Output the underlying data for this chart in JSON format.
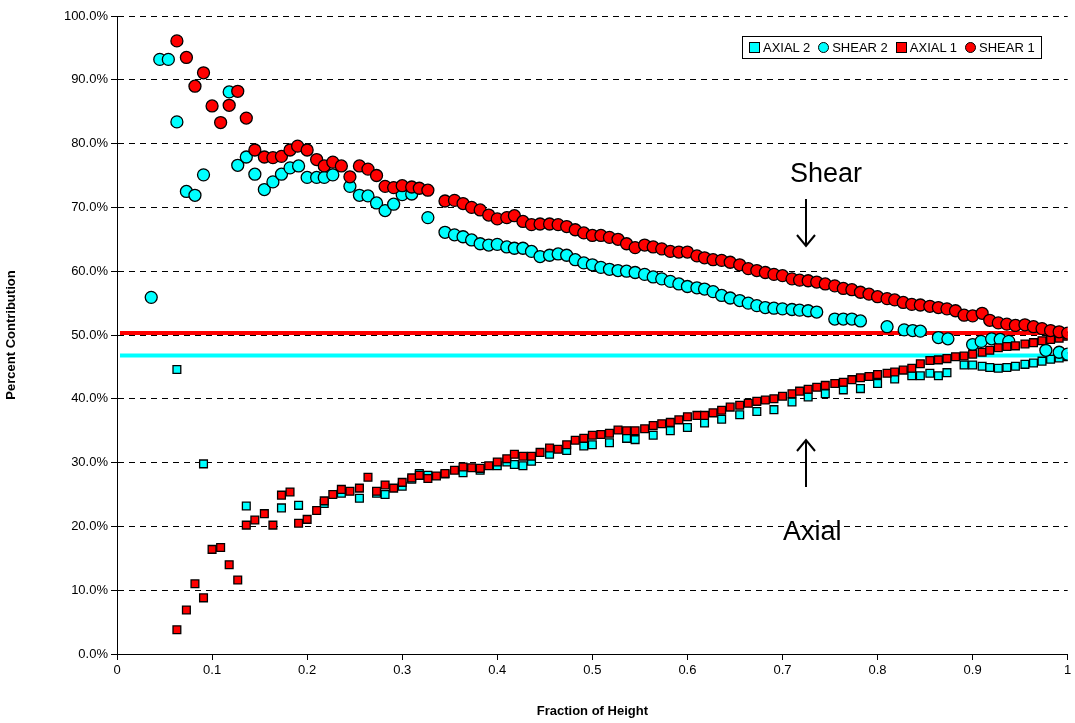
{
  "chart_data": {
    "type": "scatter",
    "xlabel": "Fraction of Height",
    "ylabel": "Percent Contribution",
    "xlim": [
      0,
      1
    ],
    "xticks": [
      0,
      0.1,
      0.2,
      0.3,
      0.4,
      0.5,
      0.6,
      0.7,
      0.8,
      0.9,
      1
    ],
    "ylim": [
      0,
      100
    ],
    "yticks": [
      {
        "value": 0,
        "label": "0.0%"
      },
      {
        "value": 10,
        "label": "10.0%"
      },
      {
        "value": 20,
        "label": "20.0%"
      },
      {
        "value": 30,
        "label": "30.0%"
      },
      {
        "value": 40,
        "label": "40.0%"
      },
      {
        "value": 50,
        "label": "50.0%"
      },
      {
        "value": 60,
        "label": "60.0%"
      },
      {
        "value": 70,
        "label": "70.0%"
      },
      {
        "value": 80,
        "label": "80.0%"
      },
      {
        "value": 90,
        "label": "90.0%"
      },
      {
        "value": 100,
        "label": "100.0%"
      }
    ],
    "grid": "y",
    "legend": "top right",
    "series": [
      {
        "name": "AXIAL 2",
        "color": "#00ffff",
        "marker": "square",
        "x": [
          0.063,
          0.091,
          0.136,
          0.173,
          0.191,
          0.218,
          0.236,
          0.255,
          0.273,
          0.282,
          0.3,
          0.31,
          0.318,
          0.327,
          0.345,
          0.364,
          0.382,
          0.4,
          0.41,
          0.418,
          0.427,
          0.436,
          0.455,
          0.473,
          0.491,
          0.5,
          0.518,
          0.536,
          0.545,
          0.564,
          0.582,
          0.6,
          0.618,
          0.636,
          0.655,
          0.673,
          0.691,
          0.71,
          0.727,
          0.745,
          0.764,
          0.782,
          0.8,
          0.818,
          0.836,
          0.845,
          0.855,
          0.864,
          0.873,
          0.891,
          0.9,
          0.91,
          0.918,
          0.927,
          0.936,
          0.945,
          0.955,
          0.964,
          0.973,
          0.982,
          0.991,
          1.0
        ],
        "values": [
          44.6,
          29.8,
          23.2,
          22.9,
          23.3,
          23.6,
          25.2,
          24.4,
          25.2,
          25,
          26.3,
          27.4,
          28.3,
          28,
          28.2,
          28.4,
          28.8,
          29.5,
          30.1,
          29.7,
          29.5,
          30.2,
          31.3,
          31.9,
          32.6,
          32.8,
          33.1,
          33.8,
          33.6,
          34.3,
          35,
          35.5,
          36.2,
          36.8,
          37.5,
          38,
          38.3,
          39.5,
          40.3,
          40.8,
          41.4,
          41.6,
          42.4,
          43.1,
          43.6,
          43.6,
          44,
          43.6,
          44.1,
          45.3,
          45.3,
          45.1,
          44.9,
          44.8,
          44.9,
          45.1,
          45.4,
          45.6,
          45.9,
          46.2,
          46.4,
          46.6
        ]
      },
      {
        "name": "SHEAR 2",
        "color": "#00ffff",
        "marker": "circle",
        "x": [
          0.036,
          0.045,
          0.054,
          0.063,
          0.073,
          0.082,
          0.091,
          0.118,
          0.127,
          0.136,
          0.145,
          0.155,
          0.164,
          0.173,
          0.182,
          0.191,
          0.2,
          0.21,
          0.218,
          0.227,
          0.245,
          0.255,
          0.264,
          0.273,
          0.282,
          0.291,
          0.3,
          0.31,
          0.327,
          0.345,
          0.355,
          0.364,
          0.373,
          0.382,
          0.391,
          0.4,
          0.41,
          0.418,
          0.427,
          0.436,
          0.445,
          0.455,
          0.464,
          0.473,
          0.482,
          0.491,
          0.5,
          0.509,
          0.518,
          0.527,
          0.536,
          0.545,
          0.555,
          0.564,
          0.573,
          0.582,
          0.591,
          0.6,
          0.61,
          0.618,
          0.627,
          0.636,
          0.645,
          0.655,
          0.664,
          0.673,
          0.682,
          0.691,
          0.7,
          0.71,
          0.718,
          0.727,
          0.736,
          0.755,
          0.764,
          0.773,
          0.782,
          0.81,
          0.828,
          0.837,
          0.845,
          0.864,
          0.874,
          0.9,
          0.909,
          0.92,
          0.929,
          0.938,
          0.977,
          0.991,
          1.0
        ],
        "values": [
          55.9,
          93.2,
          93.2,
          83.4,
          72.5,
          71.9,
          75.1,
          88.1,
          76.6,
          77.9,
          75.2,
          72.8,
          74,
          75.2,
          76.2,
          76.5,
          74.7,
          74.7,
          74.7,
          75.1,
          73.3,
          71.9,
          71.8,
          70.7,
          69.5,
          70.5,
          72,
          72.1,
          68.4,
          66.1,
          65.7,
          65.4,
          64.9,
          64.3,
          64.1,
          64.2,
          63.8,
          63.6,
          63.6,
          63.1,
          62.3,
          62.5,
          62.7,
          62.5,
          61.8,
          61.3,
          61,
          60.6,
          60.3,
          60.1,
          60,
          59.8,
          59.5,
          59.1,
          58.8,
          58.4,
          58,
          57.6,
          57.4,
          57.2,
          56.8,
          56.2,
          55.8,
          55.4,
          55,
          54.6,
          54.3,
          54.2,
          54.1,
          54,
          53.9,
          53.8,
          53.6,
          52.5,
          52.5,
          52.5,
          52.2,
          51.3,
          50.8,
          50.7,
          50.6,
          49.6,
          49.4,
          48.5,
          49,
          49.4,
          49.3,
          49,
          47.6,
          47.3,
          47
        ]
      },
      {
        "name": "AXIAL 1",
        "color": "#ff0000",
        "marker": "square",
        "x": [
          0.063,
          0.073,
          0.082,
          0.091,
          0.1,
          0.109,
          0.118,
          0.127,
          0.136,
          0.145,
          0.155,
          0.164,
          0.173,
          0.182,
          0.191,
          0.2,
          0.21,
          0.218,
          0.227,
          0.236,
          0.245,
          0.255,
          0.264,
          0.273,
          0.282,
          0.291,
          0.3,
          0.31,
          0.318,
          0.327,
          0.336,
          0.345,
          0.355,
          0.364,
          0.373,
          0.382,
          0.391,
          0.4,
          0.41,
          0.418,
          0.427,
          0.436,
          0.445,
          0.455,
          0.464,
          0.473,
          0.482,
          0.491,
          0.5,
          0.509,
          0.518,
          0.527,
          0.536,
          0.545,
          0.555,
          0.564,
          0.573,
          0.582,
          0.591,
          0.6,
          0.61,
          0.618,
          0.627,
          0.636,
          0.645,
          0.655,
          0.664,
          0.673,
          0.682,
          0.691,
          0.7,
          0.71,
          0.718,
          0.727,
          0.736,
          0.745,
          0.755,
          0.764,
          0.773,
          0.782,
          0.791,
          0.8,
          0.81,
          0.818,
          0.827,
          0.836,
          0.845,
          0.855,
          0.864,
          0.873,
          0.882,
          0.891,
          0.9,
          0.91,
          0.918,
          0.927,
          0.936,
          0.945,
          0.955,
          0.964,
          0.973,
          0.982,
          0.991,
          1.0
        ],
        "values": [
          3.8,
          6.9,
          11,
          8.8,
          16.4,
          16.7,
          14,
          11.6,
          20.2,
          21,
          22,
          20.2,
          24.9,
          25.4,
          20.5,
          21.1,
          22.5,
          24,
          25,
          25.8,
          25.5,
          26,
          27.7,
          25.5,
          26.5,
          26,
          26.9,
          27.6,
          28,
          27.5,
          27.9,
          28.3,
          28.8,
          29.3,
          29.2,
          29.1,
          29.5,
          30.1,
          30.6,
          31.3,
          31,
          31,
          31.6,
          32.3,
          32.1,
          32.8,
          33.5,
          33.8,
          34.3,
          34.4,
          34.6,
          35.1,
          35,
          35,
          35.3,
          35.8,
          36.1,
          36.3,
          36.7,
          37.2,
          37.4,
          37.4,
          37.8,
          38.2,
          38.7,
          39,
          39.3,
          39.6,
          39.8,
          40,
          40.4,
          40.8,
          41.2,
          41.5,
          41.8,
          42.1,
          42.4,
          42.6,
          43,
          43.3,
          43.5,
          43.8,
          44,
          44.2,
          44.5,
          44.8,
          45.5,
          46,
          46.1,
          46.3,
          46.6,
          46.7,
          47,
          47.3,
          47.6,
          48,
          48.2,
          48.3,
          48.6,
          48.8,
          49.1,
          49.3,
          49.5,
          49.8
        ]
      },
      {
        "name": "SHEAR 1",
        "color": "#ff0000",
        "marker": "circle",
        "x": [
          0.063,
          0.073,
          0.082,
          0.091,
          0.1,
          0.109,
          0.118,
          0.127,
          0.136,
          0.145,
          0.155,
          0.164,
          0.173,
          0.182,
          0.19,
          0.2,
          0.21,
          0.218,
          0.227,
          0.236,
          0.245,
          0.255,
          0.264,
          0.273,
          0.282,
          0.291,
          0.3,
          0.31,
          0.318,
          0.327,
          0.345,
          0.355,
          0.364,
          0.373,
          0.382,
          0.391,
          0.4,
          0.41,
          0.418,
          0.427,
          0.436,
          0.445,
          0.455,
          0.464,
          0.473,
          0.482,
          0.491,
          0.5,
          0.509,
          0.518,
          0.527,
          0.536,
          0.545,
          0.555,
          0.564,
          0.573,
          0.582,
          0.591,
          0.6,
          0.61,
          0.618,
          0.627,
          0.636,
          0.645,
          0.655,
          0.664,
          0.673,
          0.682,
          0.691,
          0.7,
          0.71,
          0.718,
          0.727,
          0.736,
          0.745,
          0.755,
          0.764,
          0.773,
          0.782,
          0.791,
          0.8,
          0.81,
          0.818,
          0.827,
          0.836,
          0.845,
          0.855,
          0.864,
          0.873,
          0.882,
          0.891,
          0.9,
          0.91,
          0.918,
          0.927,
          0.936,
          0.945,
          0.955,
          0.964,
          0.973,
          0.982,
          0.991,
          1.0
        ],
        "values": [
          96.1,
          93.5,
          89,
          91.1,
          85.9,
          83.3,
          86,
          88.2,
          84,
          79,
          77.9,
          77.8,
          78,
          79,
          79.6,
          79,
          77.5,
          76.5,
          77.1,
          76.5,
          74.8,
          76.5,
          76,
          75,
          73.3,
          73.1,
          73.4,
          73.2,
          73,
          72.7,
          71,
          71.1,
          70.6,
          70,
          69.6,
          68.8,
          68.2,
          68.4,
          68.7,
          67.8,
          67.3,
          67.4,
          67.4,
          67.3,
          67,
          66.5,
          66,
          65.6,
          65.6,
          65.3,
          65,
          64.3,
          63.7,
          64.1,
          63.8,
          63.5,
          63.1,
          63,
          63,
          62.4,
          62.1,
          61.8,
          61.7,
          61.4,
          61,
          60.4,
          60.1,
          59.8,
          59.5,
          59.3,
          58.8,
          58.6,
          58.5,
          58.3,
          58,
          57.7,
          57.3,
          57.1,
          56.7,
          56.4,
          56,
          55.7,
          55.5,
          55.1,
          54.8,
          54.7,
          54.5,
          54.3,
          54.1,
          53.8,
          53.1,
          53,
          53.4,
          52.3,
          51.9,
          51.7,
          51.5,
          51.6,
          51.3,
          51,
          50.7,
          50.5,
          50.3
        ]
      }
    ],
    "ref_lines": [
      {
        "axis": "y",
        "value": 50.3,
        "color": "#ff0000"
      },
      {
        "axis": "y",
        "value": 46.8,
        "color": "#00ffff"
      }
    ],
    "annotations": [
      "Shear",
      "Axial"
    ]
  }
}
